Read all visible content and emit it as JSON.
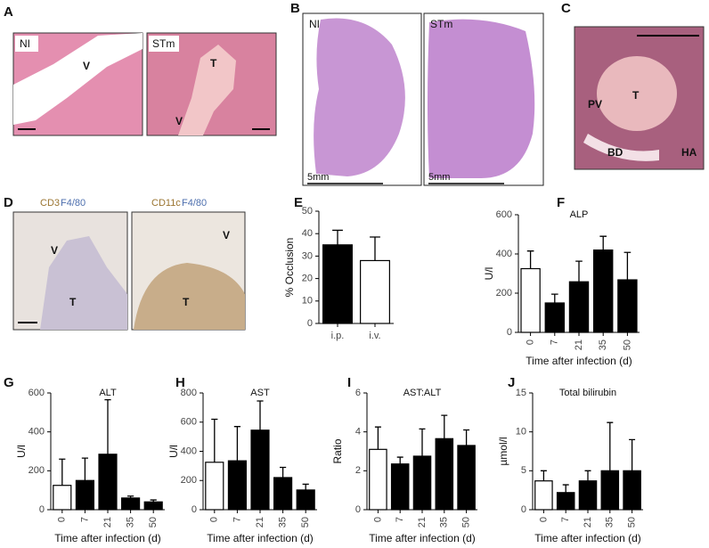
{
  "panels": [
    {
      "letter": "A",
      "labels": [
        "NI",
        "V",
        "STm",
        "T",
        "V"
      ]
    },
    {
      "letter": "B",
      "labels": [
        "NI",
        "STm",
        "5mm",
        "5mm"
      ]
    },
    {
      "letter": "C",
      "labels": [
        "T",
        "PV",
        "BD",
        "HA"
      ]
    },
    {
      "letter": "D",
      "labels": [
        "CD3",
        "F4/80",
        "CD11c",
        "F4/80",
        "V",
        "T",
        "V",
        "T"
      ]
    }
  ],
  "chart_data": [
    {
      "letter": "E",
      "type": "bar",
      "ylabel": "% Occlusion",
      "categories": [
        "i.p.",
        "i.v."
      ],
      "values": [
        35,
        28
      ],
      "errors": [
        6.5,
        10.5
      ],
      "colors": [
        "#000000",
        "#ffffff"
      ],
      "ylim": [
        0,
        50
      ],
      "yticks": [
        0,
        10,
        20,
        30,
        40,
        50
      ]
    },
    {
      "letter": "F",
      "type": "bar",
      "title": "ALP",
      "ylabel": "U/l",
      "xlabel": "Time after infection (d)",
      "categories": [
        "0",
        "7",
        "21",
        "35",
        "50"
      ],
      "values": [
        325,
        150,
        258,
        420,
        268
      ],
      "errors": [
        90,
        45,
        105,
        70,
        140
      ],
      "colors": [
        "#ffffff",
        "#000000",
        "#000000",
        "#000000",
        "#000000"
      ],
      "ylim": [
        0,
        600
      ],
      "yticks": [
        0,
        200,
        400,
        600
      ]
    },
    {
      "letter": "G",
      "type": "bar",
      "title": "ALT",
      "ylabel": "U/l",
      "xlabel": "Time after infection (d)",
      "categories": [
        "0",
        "7",
        "21",
        "35",
        "50"
      ],
      "values": [
        125,
        150,
        285,
        60,
        40
      ],
      "errors": [
        135,
        115,
        280,
        10,
        10
      ],
      "colors": [
        "#ffffff",
        "#000000",
        "#000000",
        "#000000",
        "#000000"
      ],
      "ylim": [
        0,
        600
      ],
      "yticks": [
        0,
        200,
        400,
        600
      ]
    },
    {
      "letter": "H",
      "type": "bar",
      "title": "AST",
      "ylabel": "U/l",
      "xlabel": "Time after infection (d)",
      "categories": [
        "0",
        "7",
        "21",
        "35",
        "50"
      ],
      "values": [
        325,
        335,
        545,
        220,
        135
      ],
      "errors": [
        295,
        235,
        200,
        70,
        40
      ],
      "colors": [
        "#ffffff",
        "#000000",
        "#000000",
        "#000000",
        "#000000"
      ],
      "ylim": [
        0,
        800
      ],
      "yticks": [
        0,
        200,
        400,
        600,
        800
      ]
    },
    {
      "letter": "I",
      "type": "bar",
      "title": "AST:ALT",
      "ylabel": "Ratio",
      "xlabel": "Time after infection (d)",
      "categories": [
        "0",
        "7",
        "21",
        "35",
        "50"
      ],
      "values": [
        3.1,
        2.35,
        2.75,
        3.65,
        3.3
      ],
      "errors": [
        1.15,
        0.35,
        1.4,
        1.2,
        0.8
      ],
      "colors": [
        "#ffffff",
        "#000000",
        "#000000",
        "#000000",
        "#000000"
      ],
      "ylim": [
        0,
        6
      ],
      "yticks": [
        0,
        2,
        4,
        6
      ]
    },
    {
      "letter": "J",
      "type": "bar",
      "title": "Total bilirubin",
      "ylabel": "µmol/l",
      "xlabel": "Time after infection (d)",
      "categories": [
        "0",
        "7",
        "21",
        "35",
        "50"
      ],
      "values": [
        3.7,
        2.2,
        3.7,
        5,
        5
      ],
      "errors": [
        1.3,
        1,
        1.3,
        6.2,
        4
      ],
      "colors": [
        "#ffffff",
        "#000000",
        "#000000",
        "#000000",
        "#000000"
      ],
      "ylim": [
        0,
        15
      ],
      "yticks": [
        0,
        5,
        10,
        15
      ]
    }
  ]
}
